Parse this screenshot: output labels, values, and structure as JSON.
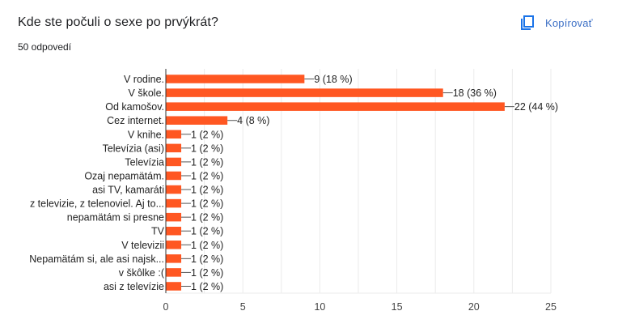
{
  "header": {
    "title": "Kde ste počuli o sexe po prvýkrát?",
    "response_count": "50 odpovedí",
    "copy_label": "Kopírovať",
    "copy_icon": "copy-icon"
  },
  "colors": {
    "bar": "#ff5722",
    "accent": "#1a73e8",
    "grid": "#ebebeb",
    "axis": "#333333",
    "text": "#222222"
  },
  "chart_data": {
    "type": "bar",
    "orientation": "horizontal",
    "title": "Kde ste počuli o sexe po prvýkrát?",
    "subtitle": "50 odpovedí",
    "xlabel": "",
    "ylabel": "",
    "xlim": [
      0,
      25
    ],
    "xticks": [
      0,
      5,
      10,
      15,
      20,
      25
    ],
    "grid": true,
    "legend": "none",
    "categories": [
      "V rodine.",
      "V škole.",
      "Od kamošov.",
      "Cez internet.",
      "V knihe.",
      "Televízia (asi)",
      "Televízia",
      "Ozaj nepamätám.",
      "asi TV, kamaráti",
      "z televizie, z telenoviel. Aj to...",
      "nepamätám si presne",
      "TV",
      "V televizii",
      "Nepamätám si, ale asi najsk...",
      "v škôlke :(",
      "asi z televízie"
    ],
    "values": [
      9,
      18,
      22,
      4,
      1,
      1,
      1,
      1,
      1,
      1,
      1,
      1,
      1,
      1,
      1,
      1
    ],
    "labels": [
      "9 (18 %)",
      "18 (36 %)",
      "22 (44 %)",
      "4 (8 %)",
      "1 (2 %)",
      "1 (2 %)",
      "1 (2 %)",
      "1 (2 %)",
      "1 (2 %)",
      "1 (2 %)",
      "1 (2 %)",
      "1 (2 %)",
      "1 (2 %)",
      "1 (2 %)",
      "1 (2 %)",
      "1 (2 %)"
    ]
  }
}
